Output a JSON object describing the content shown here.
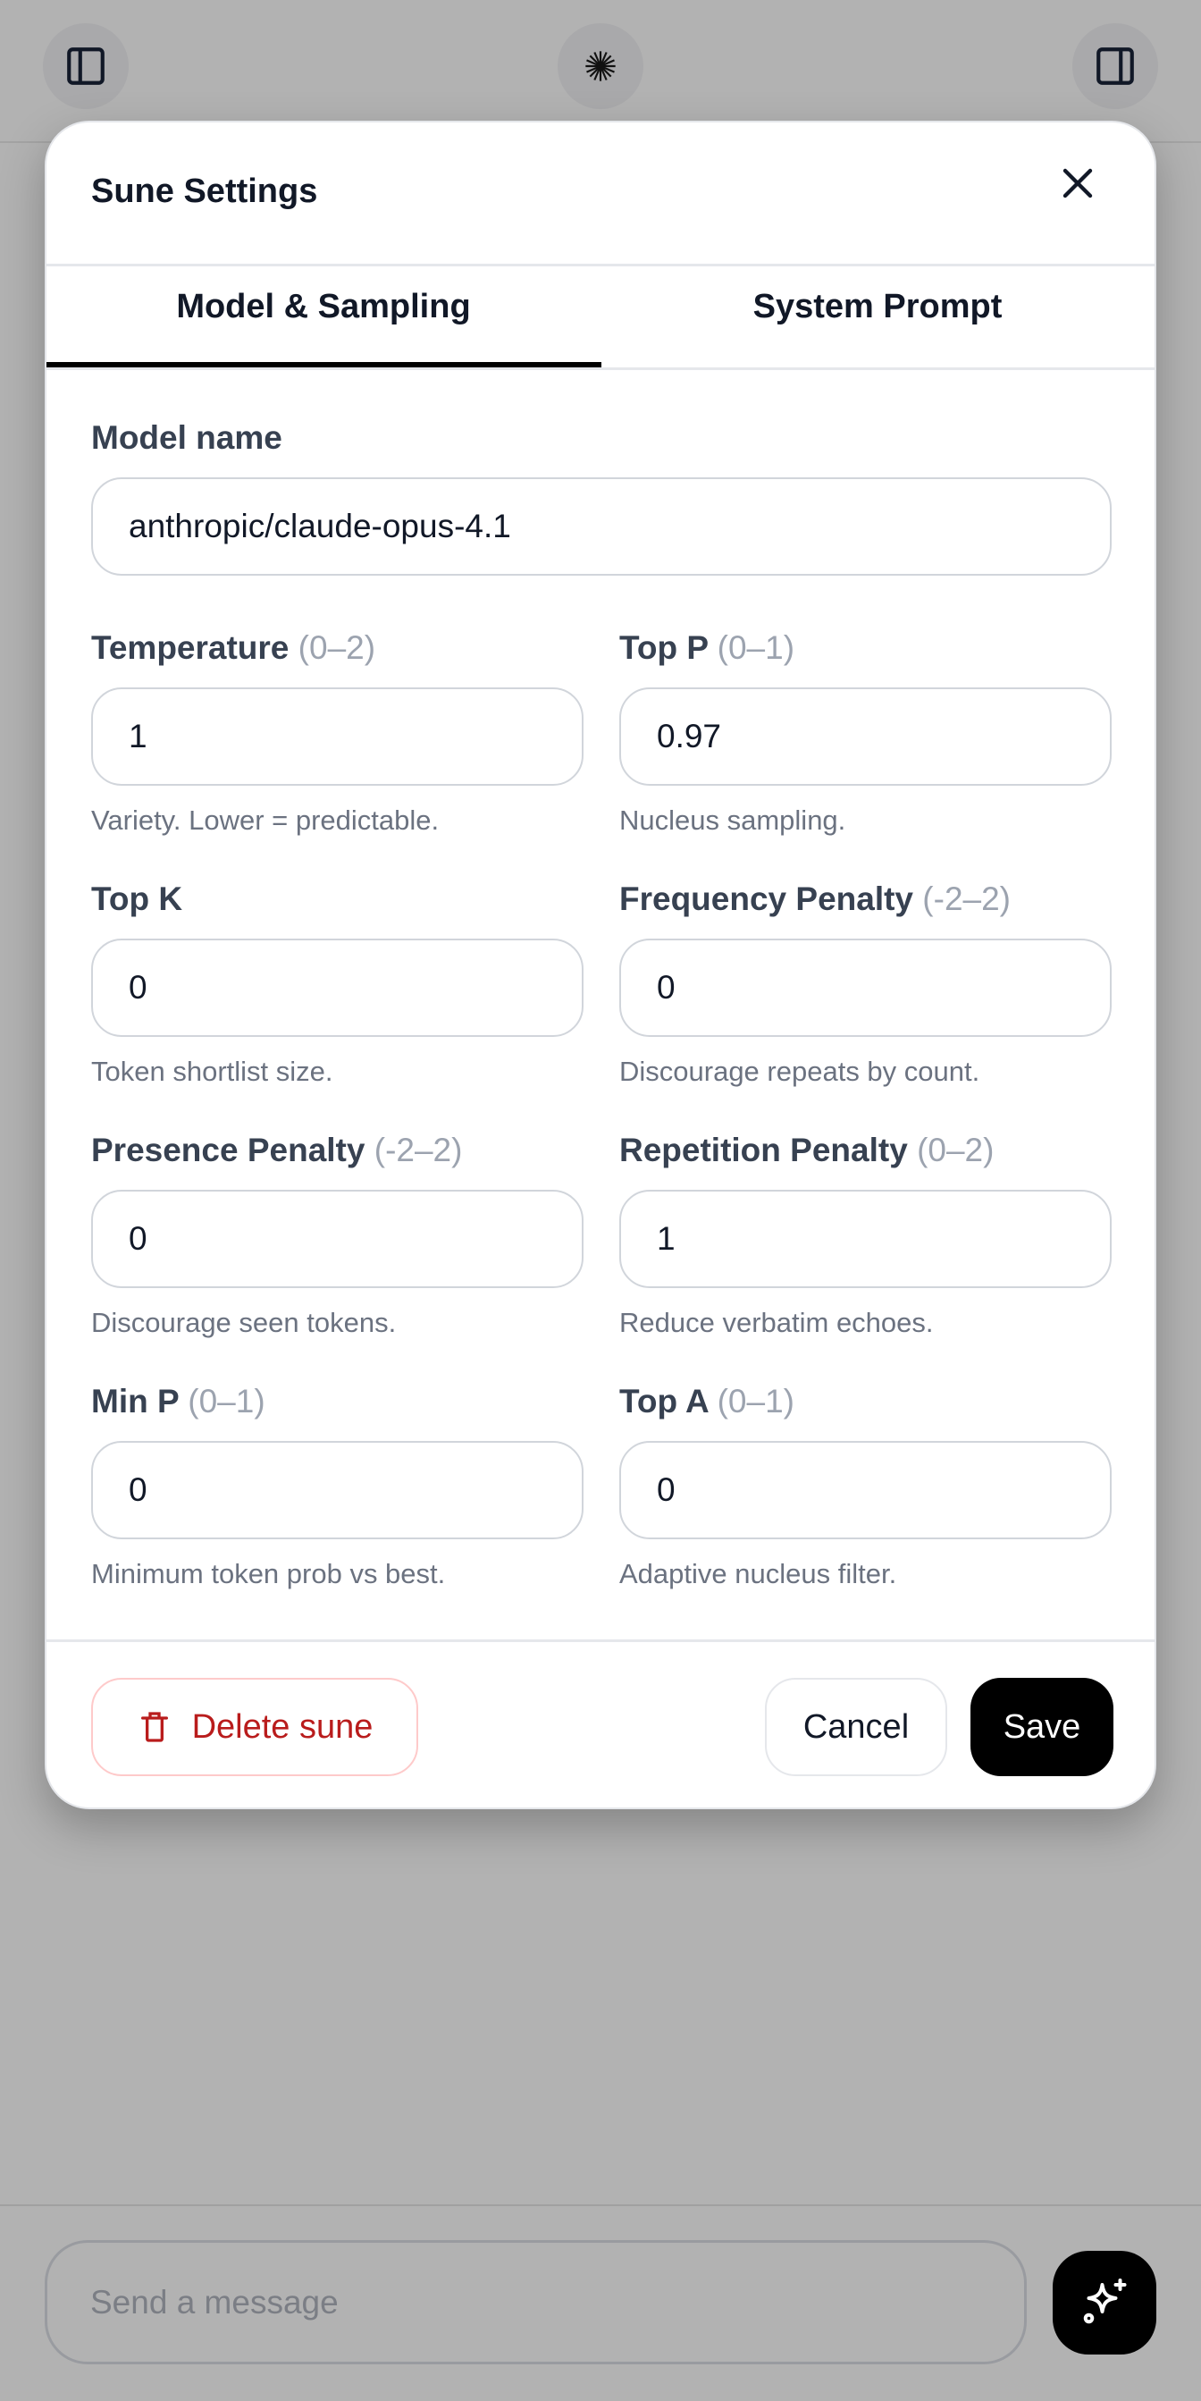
{
  "topbar": {
    "left_icon": "sidebar-left-icon",
    "center_icon": "starburst-logo-icon",
    "right_icon": "sidebar-right-icon"
  },
  "modal": {
    "title": "Sune Settings",
    "close_icon": "close-icon",
    "tabs": [
      {
        "label": "Model & Sampling",
        "active": true
      },
      {
        "label": "System Prompt",
        "active": false
      }
    ],
    "model": {
      "label": "Model name",
      "value": "anthropic/claude-opus-4.1"
    },
    "fields": [
      {
        "label": "Temperature",
        "range": "(0–2)",
        "value": "1",
        "help": "Variety. Lower = predictable."
      },
      {
        "label": "Top P",
        "range": "(0–1)",
        "value": "0.97",
        "help": "Nucleus sampling."
      },
      {
        "label": "Top K",
        "range": "",
        "value": "0",
        "help": "Token shortlist size."
      },
      {
        "label": "Frequency Penalty",
        "range": "(-2–2)",
        "value": "0",
        "help": "Discourage repeats by count."
      },
      {
        "label": "Presence Penalty",
        "range": "(-2–2)",
        "value": "0",
        "help": "Discourage seen tokens."
      },
      {
        "label": "Repetition Penalty",
        "range": "(0–2)",
        "value": "1",
        "help": "Reduce verbatim echoes."
      },
      {
        "label": "Min P",
        "range": "(0–1)",
        "value": "0",
        "help": "Minimum token prob vs best."
      },
      {
        "label": "Top A",
        "range": "(0–1)",
        "value": "0",
        "help": "Adaptive nucleus filter."
      }
    ],
    "footer": {
      "delete_label": "Delete sune",
      "delete_icon": "trash-icon",
      "cancel_label": "Cancel",
      "save_label": "Save"
    }
  },
  "composer": {
    "placeholder": "Send a message",
    "send_icon": "sparkles-icon"
  },
  "colors": {
    "danger": "#b91c1c",
    "primary": "#000000",
    "backdrop": "#b2b2b2"
  }
}
